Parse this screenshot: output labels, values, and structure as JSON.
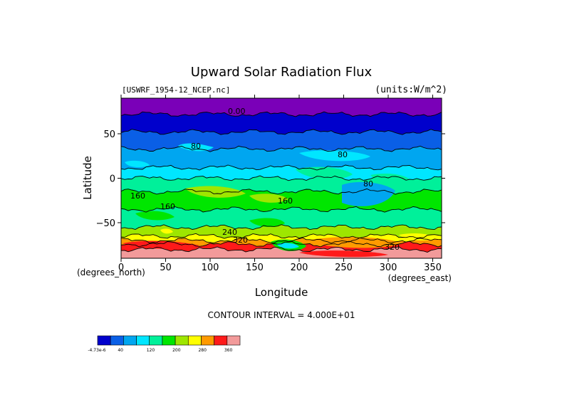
{
  "chart_data": {
    "type": "heatmap",
    "title": "Upward Solar Radiation Flux",
    "file_label": "[USWRF_1954-12_NCEP.nc]",
    "units_label": "(units:W/m^2)",
    "xlabel": "Longitude",
    "ylabel": "Latitude",
    "x_unit_label": "(degrees_east)",
    "y_unit_label": "(degrees_north)",
    "xlim": [
      0,
      360
    ],
    "ylim": [
      -90,
      90
    ],
    "x_ticks": [
      0,
      50,
      100,
      150,
      200,
      250,
      300,
      350
    ],
    "y_ticks": [
      50,
      0,
      -50
    ],
    "contour_interval_text": "CONTOUR INTERVAL = 4.000E+01",
    "contour_labels": [
      "0.00",
      "80",
      "80",
      "80",
      "160",
      "160",
      "160",
      "240",
      "320",
      "320"
    ],
    "colorbar": {
      "colors": [
        "#0000cc",
        "#0a5fe6",
        "#00a6f0",
        "#00e6ff",
        "#00f09a",
        "#00e600",
        "#9ee600",
        "#ffff00",
        "#ff9a00",
        "#ff1a1a",
        "#f29a9a"
      ],
      "tick_labels": [
        "-4.73e-6",
        "40",
        "120",
        "200",
        "280",
        "360"
      ]
    },
    "bands": [
      {
        "lat_top": 90,
        "lat_bottom": 72,
        "value": "0-40",
        "color": "#7a00b8"
      },
      {
        "lat_top": 72,
        "lat_bottom": 52,
        "value": "0-40",
        "color": "#0000cc"
      },
      {
        "lat_top": 52,
        "lat_bottom": 33,
        "value": "40-80",
        "color": "#0a5fe6"
      },
      {
        "lat_top": 33,
        "lat_bottom": 12,
        "value": "80-120",
        "color": "#00a6f0"
      },
      {
        "lat_top": 12,
        "lat_bottom": 0,
        "value": "120-160",
        "color": "#00e6ff"
      },
      {
        "lat_top": 0,
        "lat_bottom": -15,
        "value": "120-160",
        "color": "#00f09a"
      },
      {
        "lat_top": -15,
        "lat_bottom": -35,
        "value": "160-200",
        "color": "#00e600"
      },
      {
        "lat_top": -35,
        "lat_bottom": -55,
        "value": "120-160",
        "color": "#00f09a"
      },
      {
        "lat_top": -55,
        "lat_bottom": -65,
        "value": "160-200",
        "color": "#9ee600"
      },
      {
        "lat_top": -65,
        "lat_bottom": -70,
        "value": "200-240",
        "color": "#ffff00"
      },
      {
        "lat_top": -70,
        "lat_bottom": -74,
        "value": "240-280",
        "color": "#ff9a00"
      },
      {
        "lat_top": -74,
        "lat_bottom": -80,
        "value": "280-320",
        "color": "#ff1a1a"
      },
      {
        "lat_top": -80,
        "lat_bottom": -90,
        "value": "320-360",
        "color": "#f29a9a"
      }
    ]
  }
}
